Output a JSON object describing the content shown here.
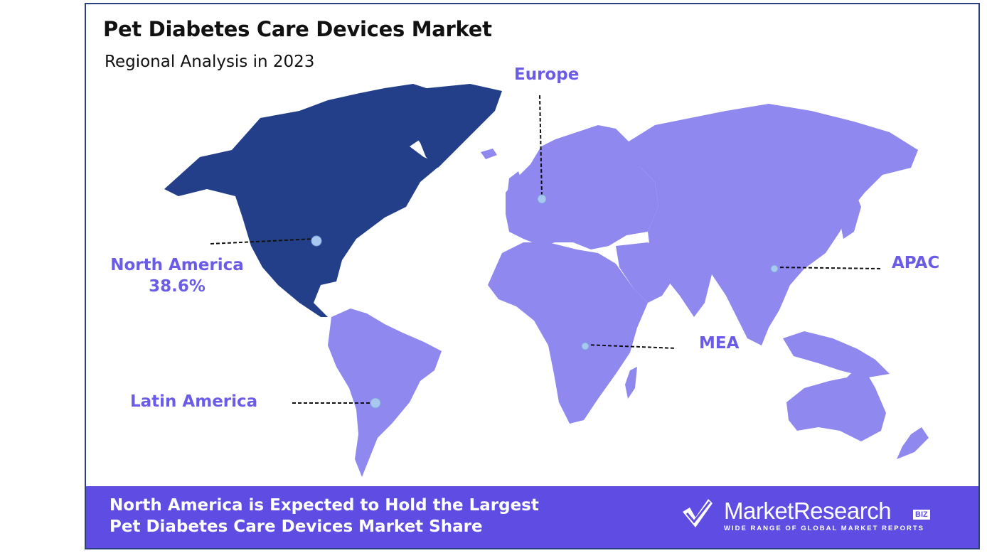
{
  "title": "Pet Diabetes Care Devices Market",
  "subtitle": "Regional Analysis in 2023",
  "regions": {
    "north_america": {
      "name": "North America",
      "share": "38.6%",
      "color": "#233f8a"
    },
    "europe": {
      "name": "Europe",
      "color": "#8f88ee"
    },
    "apac": {
      "name": "APAC",
      "color": "#8f88ee"
    },
    "mea": {
      "name": "MEA",
      "color": "#8f88ee"
    },
    "latin_america": {
      "name": "Latin America",
      "color": "#8f88ee"
    }
  },
  "banner": {
    "text": "North America is Expected to Hold the Largest Pet Diabetes Care Devices Market Share",
    "color": "#5f4de3"
  },
  "logo": {
    "name": "MarketResearch",
    "badge": "BIZ",
    "tagline": "WIDE RANGE OF GLOBAL MARKET REPORTS",
    "icon": "checkmark-logo-icon"
  },
  "colors": {
    "label": "#6b5ce7",
    "highlight_region": "#233f8a",
    "other_regions": "#8f88ee",
    "marker": "#a9c8f0"
  }
}
